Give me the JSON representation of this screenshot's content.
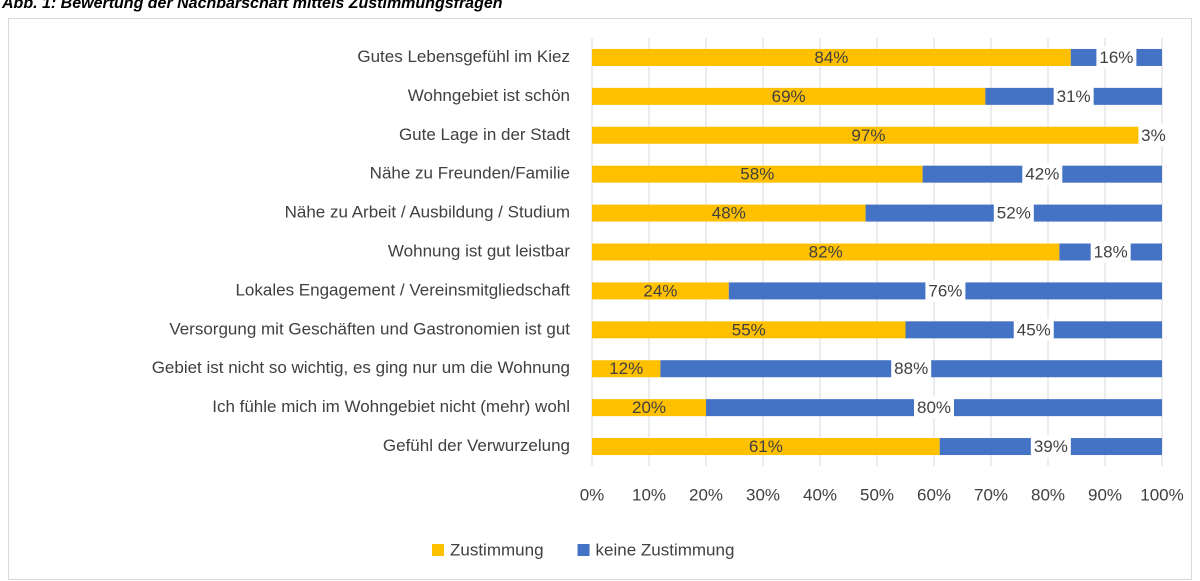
{
  "chart_data": {
    "type": "bar",
    "orientation": "horizontal",
    "stacked": true,
    "title": "Abb. 1: Bewertung der Nachbarschaft mittels Zustimmungsfragen",
    "categories": [
      "Gutes Lebensgefühl im Kiez",
      "Wohngebiet ist schön",
      "Gute Lage in der Stadt",
      "Nähe zu Freunden/Familie",
      "Nähe zu Arbeit / Ausbildung / Studium",
      "Wohnung ist gut leistbar",
      "Lokales Engagement / Vereinsmitgliedschaft",
      "Versorgung mit Geschäften und Gastronomien ist gut",
      "Gebiet ist nicht so wichtig, es ging nur um die Wohnung",
      "Ich fühle mich im Wohngebiet nicht (mehr) wohl",
      "Gefühl der Verwurzelung"
    ],
    "series": [
      {
        "name": "Zustimmung",
        "color": "#ffc000",
        "values": [
          84,
          69,
          97,
          58,
          48,
          82,
          24,
          55,
          12,
          20,
          61
        ],
        "value_labels": [
          "84%",
          "69%",
          "97%",
          "58%",
          "48%",
          "82%",
          "24%",
          "55%",
          "12%",
          "20%",
          "61%"
        ]
      },
      {
        "name": "keine Zustimmung",
        "color": "#4472c4",
        "values": [
          16,
          31,
          3,
          42,
          52,
          18,
          76,
          45,
          88,
          80,
          39
        ],
        "value_labels": [
          "16%",
          "31%",
          "3%",
          "42%",
          "52%",
          "18%",
          "76%",
          "45%",
          "88%",
          "80%",
          "39%"
        ]
      }
    ],
    "xlim": [
      0,
      100
    ],
    "xticks": [
      {
        "value": 0,
        "label": "0%"
      },
      {
        "value": 10,
        "label": "10%"
      },
      {
        "value": 20,
        "label": "20%"
      },
      {
        "value": 30,
        "label": "30%"
      },
      {
        "value": 40,
        "label": "40%"
      },
      {
        "value": 50,
        "label": "50%"
      },
      {
        "value": 60,
        "label": "60%"
      },
      {
        "value": 70,
        "label": "70%"
      },
      {
        "value": 80,
        "label": "80%"
      },
      {
        "value": 90,
        "label": "90%"
      },
      {
        "value": 100,
        "label": "100%"
      }
    ],
    "grid": true,
    "legend": "bottom"
  }
}
